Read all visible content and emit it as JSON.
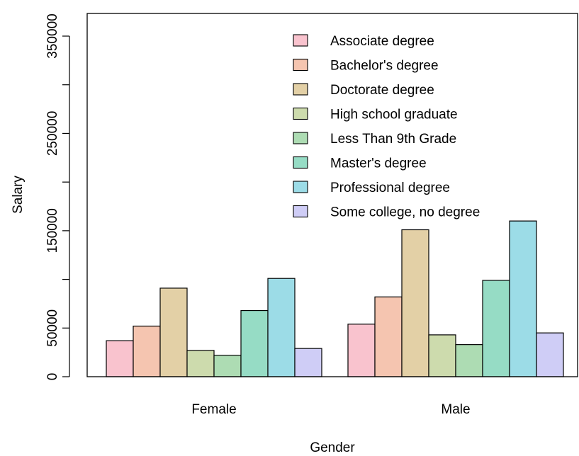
{
  "chart_data": {
    "type": "bar",
    "title": "",
    "xlabel": "Gender",
    "ylabel": "Salary",
    "categories": [
      "Female",
      "Male"
    ],
    "ylim": [
      0,
      375000
    ],
    "yticks": [
      0,
      50000,
      150000,
      250000,
      350000
    ],
    "minor_ticks": [
      100000,
      200000,
      300000
    ],
    "legend_position": "top-right",
    "series": [
      {
        "name": "Associate degree",
        "color": "#F9C3CE",
        "values": [
          37000,
          54000
        ]
      },
      {
        "name": "Bachelor's degree",
        "color": "#F5C5B0",
        "values": [
          52000,
          82000
        ]
      },
      {
        "name": "Doctorate degree",
        "color": "#E3D0A6",
        "values": [
          91000,
          151000
        ]
      },
      {
        "name": "High school graduate",
        "color": "#CDDBAD",
        "values": [
          27000,
          43000
        ]
      },
      {
        "name": "Less Than 9th Grade",
        "color": "#ADDCB3",
        "values": [
          22000,
          33000
        ]
      },
      {
        "name": "Master's degree",
        "color": "#96DCC5",
        "values": [
          68000,
          99000
        ]
      },
      {
        "name": "Professional degree",
        "color": "#9CDCE7",
        "values": [
          101000,
          160000
        ]
      },
      {
        "name": "Some college, no degree",
        "color": "#CFCDF6",
        "values": [
          29000,
          45000
        ]
      }
    ]
  }
}
